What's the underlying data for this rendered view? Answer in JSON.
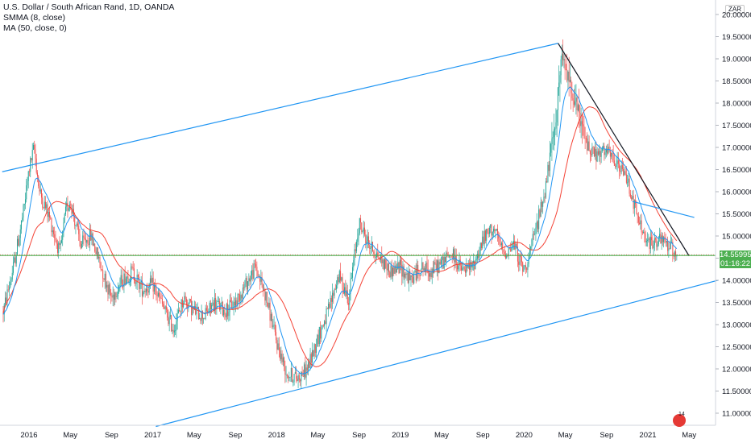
{
  "legend": {
    "symbol": "U.S. Dollar / South African Rand, 1D, OANDA",
    "smma": "SMMA (8, close)",
    "ma": "MA (50, close, 0)"
  },
  "currency": "ZAR",
  "last_price": "14.55995",
  "countdown": "01:16:22",
  "logo_badge": "14",
  "chart_data": {
    "type": "line",
    "title": "U.S. Dollar / South African Rand, 1D, OANDA",
    "ylim": [
      10.8,
      20.0
    ],
    "y_ticks": [
      "20.00000",
      "19.50000",
      "19.00000",
      "18.50000",
      "18.00000",
      "17.50000",
      "17.00000",
      "16.50000",
      "16.00000",
      "15.50000",
      "15.00000",
      "14.50000",
      "14.00000",
      "13.50000",
      "13.00000",
      "12.50000",
      "12.00000",
      "11.50000",
      "11.00000"
    ],
    "x_ticks": [
      {
        "label": "2016",
        "t": 0
      },
      {
        "label": "May",
        "t": 4
      },
      {
        "label": "Sep",
        "t": 8
      },
      {
        "label": "2017",
        "t": 12
      },
      {
        "label": "May",
        "t": 16
      },
      {
        "label": "Sep",
        "t": 20
      },
      {
        "label": "2018",
        "t": 24
      },
      {
        "label": "May",
        "t": 28
      },
      {
        "label": "Sep",
        "t": 32
      },
      {
        "label": "2019",
        "t": 36
      },
      {
        "label": "May",
        "t": 40
      },
      {
        "label": "Sep",
        "t": 44
      },
      {
        "label": "2020",
        "t": 48
      },
      {
        "label": "May",
        "t": 52
      },
      {
        "label": "Sep",
        "t": 56
      },
      {
        "label": "2021",
        "t": 60
      },
      {
        "label": "May",
        "t": 64
      }
    ],
    "colors": {
      "up": "#26a69a",
      "down": "#ef5350",
      "smma": "#2196f3",
      "ma": "#f44336",
      "trend": "#2196f3",
      "resistance": "#131722",
      "level": "#4caf50"
    },
    "price_path": [
      {
        "t": -2.5,
        "p": 13.3
      },
      {
        "t": -1.5,
        "p": 14.3
      },
      {
        "t": -0.5,
        "p": 15.6
      },
      {
        "t": 0.0,
        "p": 16.5
      },
      {
        "t": 0.5,
        "p": 17.0
      },
      {
        "t": 1.0,
        "p": 16.0
      },
      {
        "t": 2.0,
        "p": 15.4
      },
      {
        "t": 3.0,
        "p": 14.6
      },
      {
        "t": 3.6,
        "p": 15.6
      },
      {
        "t": 4.0,
        "p": 15.8
      },
      {
        "t": 5.0,
        "p": 14.8
      },
      {
        "t": 6.0,
        "p": 15.0
      },
      {
        "t": 7.0,
        "p": 14.3
      },
      {
        "t": 8.0,
        "p": 13.6
      },
      {
        "t": 9.0,
        "p": 14.0
      },
      {
        "t": 10.0,
        "p": 14.2
      },
      {
        "t": 11.0,
        "p": 13.8
      },
      {
        "t": 12.0,
        "p": 13.9
      },
      {
        "t": 13.0,
        "p": 13.4
      },
      {
        "t": 14.0,
        "p": 12.9
      },
      {
        "t": 15.0,
        "p": 13.6
      },
      {
        "t": 16.0,
        "p": 13.3
      },
      {
        "t": 17.0,
        "p": 13.2
      },
      {
        "t": 18.0,
        "p": 13.5
      },
      {
        "t": 19.0,
        "p": 13.3
      },
      {
        "t": 20.0,
        "p": 13.5
      },
      {
        "t": 21.0,
        "p": 13.9
      },
      {
        "t": 22.0,
        "p": 14.3
      },
      {
        "t": 23.0,
        "p": 13.6
      },
      {
        "t": 24.0,
        "p": 12.6
      },
      {
        "t": 25.0,
        "p": 11.9
      },
      {
        "t": 26.0,
        "p": 11.8
      },
      {
        "t": 27.0,
        "p": 12.0
      },
      {
        "t": 28.0,
        "p": 12.7
      },
      {
        "t": 29.0,
        "p": 13.3
      },
      {
        "t": 30.0,
        "p": 14.1
      },
      {
        "t": 31.0,
        "p": 13.6
      },
      {
        "t": 32.0,
        "p": 15.3
      },
      {
        "t": 33.0,
        "p": 14.8
      },
      {
        "t": 34.0,
        "p": 14.5
      },
      {
        "t": 35.0,
        "p": 14.2
      },
      {
        "t": 36.0,
        "p": 14.3
      },
      {
        "t": 37.0,
        "p": 14.0
      },
      {
        "t": 38.0,
        "p": 14.3
      },
      {
        "t": 39.0,
        "p": 14.2
      },
      {
        "t": 40.0,
        "p": 14.4
      },
      {
        "t": 41.0,
        "p": 14.6
      },
      {
        "t": 42.0,
        "p": 14.2
      },
      {
        "t": 43.0,
        "p": 14.3
      },
      {
        "t": 44.0,
        "p": 14.9
      },
      {
        "t": 45.0,
        "p": 15.2
      },
      {
        "t": 46.0,
        "p": 14.6
      },
      {
        "t": 47.0,
        "p": 14.8
      },
      {
        "t": 48.0,
        "p": 14.2
      },
      {
        "t": 49.0,
        "p": 15.0
      },
      {
        "t": 50.0,
        "p": 16.0
      },
      {
        "t": 51.0,
        "p": 17.5
      },
      {
        "t": 51.6,
        "p": 19.0
      },
      {
        "t": 52.0,
        "p": 18.8
      },
      {
        "t": 53.0,
        "p": 18.0
      },
      {
        "t": 54.0,
        "p": 17.1
      },
      {
        "t": 55.0,
        "p": 16.8
      },
      {
        "t": 56.0,
        "p": 16.9
      },
      {
        "t": 57.0,
        "p": 16.6
      },
      {
        "t": 58.0,
        "p": 16.3
      },
      {
        "t": 59.0,
        "p": 15.4
      },
      {
        "t": 60.0,
        "p": 14.8
      },
      {
        "t": 61.0,
        "p": 14.9
      },
      {
        "t": 62.0,
        "p": 14.8
      },
      {
        "t": 62.8,
        "p": 14.56
      }
    ],
    "upper_channel": [
      {
        "t": -2.6,
        "p": 16.45
      },
      {
        "t": 51.3,
        "p": 19.35
      }
    ],
    "lower_channel": [
      {
        "t": 12.3,
        "p": 10.7
      },
      {
        "t": 66.8,
        "p": 14.0
      }
    ],
    "resistance_line": [
      {
        "t": 51.3,
        "p": 19.35
      },
      {
        "t": 64.0,
        "p": 14.55
      }
    ],
    "short_trend": [
      {
        "t": 58.5,
        "p": 15.78
      },
      {
        "t": 64.5,
        "p": 15.42
      }
    ],
    "horizontal_level": 14.56
  }
}
